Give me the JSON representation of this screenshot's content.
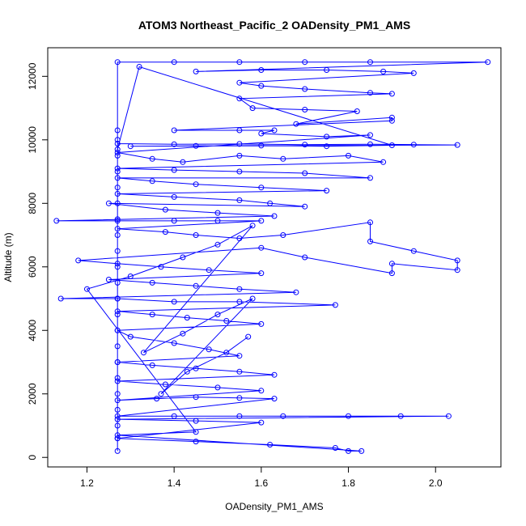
{
  "chart_data": {
    "type": "scatter",
    "title": "ATOM3 Northeast_Pacific_2 OADensity_PM1_AMS",
    "xlabel": "OADensity_PM1_AMS",
    "ylabel": "Altitude (m)",
    "xlim": [
      1.11,
      2.15
    ],
    "ylim": [
      -300,
      12900
    ],
    "x_ticks": [
      1.2,
      1.4,
      1.6,
      1.8,
      2.0
    ],
    "x_tick_labels": [
      "1.2",
      "1.4",
      "1.6",
      "1.8",
      "2.0"
    ],
    "y_ticks": [
      0,
      2000,
      4000,
      6000,
      8000,
      10000,
      12000
    ],
    "y_tick_labels": [
      "0",
      "2000",
      "4000",
      "6000",
      "8000",
      "10000",
      "12000"
    ],
    "grid": false,
    "marker": "open-circle",
    "connected": true,
    "color": "#0000ff",
    "series": [
      {
        "points": [
          [
            1.27,
            200
          ],
          [
            1.27,
            600
          ],
          [
            1.27,
            1000
          ],
          [
            1.27,
            1500
          ],
          [
            1.27,
            2000
          ],
          [
            1.27,
            2500
          ],
          [
            1.27,
            3000
          ],
          [
            1.27,
            3500
          ],
          [
            1.27,
            4000
          ],
          [
            1.27,
            4500
          ],
          [
            1.27,
            5000
          ],
          [
            1.27,
            5500
          ],
          [
            1.27,
            6000
          ],
          [
            1.27,
            6500
          ],
          [
            1.27,
            7000
          ],
          [
            1.27,
            7500
          ],
          [
            1.27,
            8000
          ],
          [
            1.27,
            8500
          ],
          [
            1.27,
            9000
          ],
          [
            1.27,
            9500
          ],
          [
            1.27,
            10000
          ],
          [
            1.27,
            10300
          ],
          [
            1.27,
            9880
          ],
          [
            1.4,
            9860
          ],
          [
            1.55,
            9870
          ],
          [
            1.7,
            9850
          ],
          [
            1.85,
            9860
          ],
          [
            1.95,
            9850
          ],
          [
            2.05,
            9840
          ],
          [
            1.3,
            9800
          ],
          [
            1.45,
            9810
          ],
          [
            1.6,
            9820
          ],
          [
            1.75,
            9800
          ],
          [
            1.9,
            9830
          ],
          [
            1.32,
            12300
          ],
          [
            1.27,
            9700
          ],
          [
            1.27,
            12450
          ],
          [
            1.4,
            12450
          ],
          [
            1.55,
            12450
          ],
          [
            1.7,
            12450
          ],
          [
            1.85,
            12450
          ],
          [
            2.12,
            12450
          ],
          [
            1.45,
            12150
          ],
          [
            1.6,
            12200
          ],
          [
            1.75,
            12200
          ],
          [
            1.88,
            12150
          ],
          [
            1.95,
            12100
          ],
          [
            1.55,
            11800
          ],
          [
            1.6,
            11700
          ],
          [
            1.7,
            11600
          ],
          [
            1.85,
            11480
          ],
          [
            1.9,
            11450
          ],
          [
            1.55,
            11300
          ],
          [
            1.58,
            11000
          ],
          [
            1.7,
            10950
          ],
          [
            1.82,
            10900
          ],
          [
            1.68,
            10500
          ],
          [
            1.9,
            10700
          ],
          [
            1.9,
            10600
          ],
          [
            1.4,
            10300
          ],
          [
            1.55,
            10300
          ],
          [
            1.63,
            10300
          ],
          [
            1.6,
            10200
          ],
          [
            1.75,
            10100
          ],
          [
            1.85,
            10150
          ],
          [
            1.27,
            9600
          ],
          [
            1.35,
            9400
          ],
          [
            1.42,
            9300
          ],
          [
            1.55,
            9500
          ],
          [
            1.65,
            9400
          ],
          [
            1.8,
            9500
          ],
          [
            1.88,
            9300
          ],
          [
            1.27,
            9100
          ],
          [
            1.4,
            9050
          ],
          [
            1.55,
            9000
          ],
          [
            1.7,
            8950
          ],
          [
            1.85,
            8800
          ],
          [
            1.27,
            8800
          ],
          [
            1.35,
            8700
          ],
          [
            1.45,
            8600
          ],
          [
            1.6,
            8500
          ],
          [
            1.75,
            8400
          ],
          [
            1.27,
            8300
          ],
          [
            1.4,
            8200
          ],
          [
            1.55,
            8100
          ],
          [
            1.62,
            8000
          ],
          [
            1.7,
            7900
          ],
          [
            1.25,
            8000
          ],
          [
            1.38,
            7800
          ],
          [
            1.5,
            7700
          ],
          [
            1.63,
            7600
          ],
          [
            1.13,
            7450
          ],
          [
            1.27,
            7450
          ],
          [
            1.4,
            7450
          ],
          [
            1.5,
            7450
          ],
          [
            1.6,
            7450
          ],
          [
            1.27,
            7200
          ],
          [
            1.38,
            7100
          ],
          [
            1.45,
            7000
          ],
          [
            1.55,
            6900
          ],
          [
            1.65,
            7000
          ],
          [
            1.85,
            7400
          ],
          [
            1.85,
            6800
          ],
          [
            1.95,
            6500
          ],
          [
            2.05,
            6200
          ],
          [
            2.05,
            5900
          ],
          [
            1.9,
            6100
          ],
          [
            1.9,
            5800
          ],
          [
            1.7,
            6300
          ],
          [
            1.6,
            6600
          ],
          [
            1.18,
            6200
          ],
          [
            1.27,
            6100
          ],
          [
            1.37,
            6000
          ],
          [
            1.48,
            5900
          ],
          [
            1.6,
            5800
          ],
          [
            1.25,
            5600
          ],
          [
            1.35,
            5500
          ],
          [
            1.45,
            5400
          ],
          [
            1.55,
            5300
          ],
          [
            1.68,
            5200
          ],
          [
            1.14,
            5000
          ],
          [
            1.27,
            5000
          ],
          [
            1.4,
            4900
          ],
          [
            1.55,
            4900
          ],
          [
            1.77,
            4800
          ],
          [
            1.27,
            4600
          ],
          [
            1.35,
            4500
          ],
          [
            1.43,
            4400
          ],
          [
            1.52,
            4300
          ],
          [
            1.6,
            4200
          ],
          [
            1.27,
            4000
          ],
          [
            1.3,
            3800
          ],
          [
            1.4,
            3600
          ],
          [
            1.48,
            3400
          ],
          [
            1.55,
            3200
          ],
          [
            1.27,
            3000
          ],
          [
            1.35,
            2900
          ],
          [
            1.45,
            2800
          ],
          [
            1.55,
            2700
          ],
          [
            1.63,
            2600
          ],
          [
            1.27,
            2400
          ],
          [
            1.38,
            2300
          ],
          [
            1.5,
            2200
          ],
          [
            1.6,
            2100
          ],
          [
            1.27,
            1800
          ],
          [
            1.36,
            1850
          ],
          [
            1.45,
            1900
          ],
          [
            1.55,
            1870
          ],
          [
            1.63,
            1850
          ],
          [
            1.27,
            1300
          ],
          [
            1.4,
            1300
          ],
          [
            1.55,
            1300
          ],
          [
            1.65,
            1300
          ],
          [
            1.8,
            1300
          ],
          [
            1.92,
            1300
          ],
          [
            2.03,
            1300
          ],
          [
            1.27,
            1200
          ],
          [
            1.45,
            1150
          ],
          [
            1.6,
            1100
          ],
          [
            1.27,
            600
          ],
          [
            1.45,
            500
          ],
          [
            1.62,
            400
          ],
          [
            1.77,
            300
          ],
          [
            1.8,
            200
          ],
          [
            1.83,
            200
          ],
          [
            1.27,
            700
          ],
          [
            1.45,
            800
          ],
          [
            1.2,
            5300
          ],
          [
            1.3,
            5700
          ],
          [
            1.42,
            6300
          ],
          [
            1.5,
            6700
          ],
          [
            1.58,
            7300
          ],
          [
            1.33,
            3300
          ],
          [
            1.42,
            3900
          ],
          [
            1.5,
            4500
          ],
          [
            1.58,
            5000
          ],
          [
            1.37,
            2000
          ],
          [
            1.43,
            2700
          ],
          [
            1.52,
            3300
          ],
          [
            1.57,
            3800
          ]
        ]
      }
    ]
  }
}
